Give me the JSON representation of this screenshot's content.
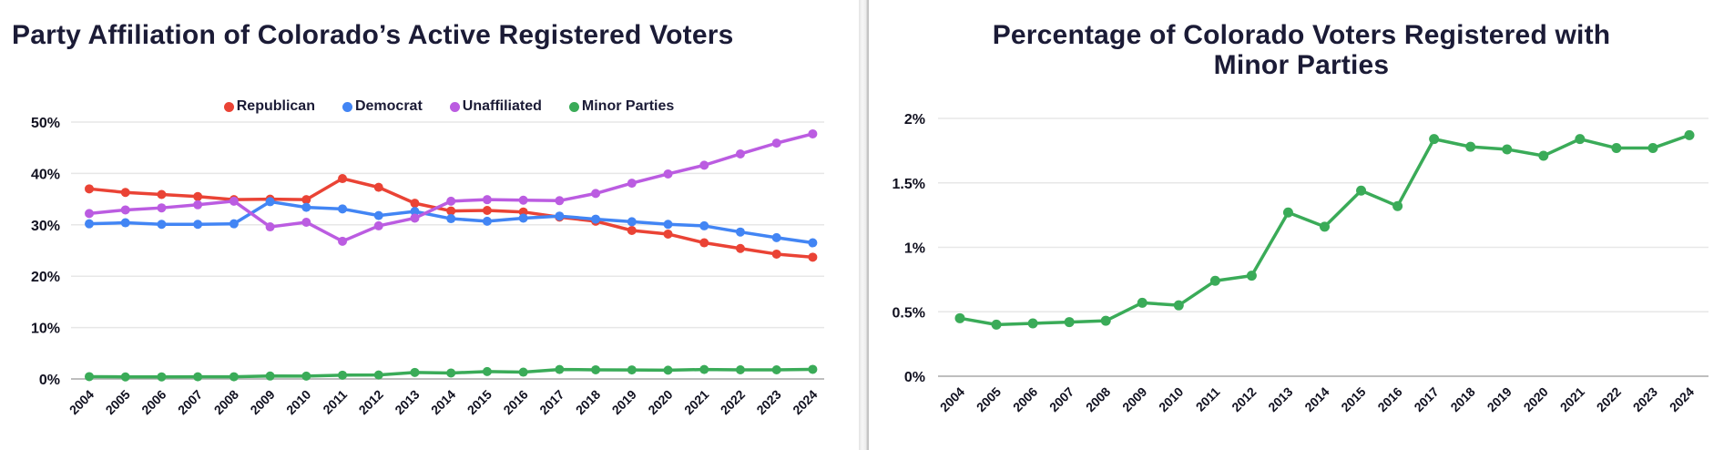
{
  "charts": [
    {
      "title": "Party Affiliation of Colorado’s Active Registered Voters"
    },
    {
      "title": "Percentage of Colorado Voters Registered with Minor Parties"
    }
  ],
  "chart_data": [
    {
      "type": "line",
      "title": "Party Affiliation of Colorado’s Active Registered Voters",
      "x": [
        2004,
        2005,
        2006,
        2007,
        2008,
        2009,
        2010,
        2011,
        2012,
        2013,
        2014,
        2015,
        2016,
        2017,
        2018,
        2019,
        2020,
        2021,
        2022,
        2023,
        2024
      ],
      "series": [
        {
          "name": "Republican",
          "color": "#EA4335",
          "values": [
            37.0,
            36.3,
            35.9,
            35.5,
            34.9,
            35.0,
            34.9,
            39.0,
            37.3,
            34.2,
            32.7,
            32.8,
            32.5,
            31.5,
            30.7,
            28.9,
            28.2,
            26.5,
            25.4,
            24.3,
            23.7
          ]
        },
        {
          "name": "Democrat",
          "color": "#4285F4",
          "values": [
            30.2,
            30.4,
            30.1,
            30.1,
            30.2,
            34.5,
            33.4,
            33.1,
            31.8,
            32.6,
            31.2,
            30.7,
            31.3,
            31.7,
            31.1,
            30.6,
            30.1,
            29.8,
            28.6,
            27.5,
            26.5
          ]
        },
        {
          "name": "Unaffiliated",
          "color": "#BB5CE1",
          "values": [
            32.2,
            32.9,
            33.3,
            33.9,
            34.6,
            29.6,
            30.5,
            26.8,
            29.8,
            31.3,
            34.6,
            34.9,
            34.8,
            34.7,
            36.1,
            38.1,
            39.9,
            41.6,
            43.8,
            45.9,
            47.7
          ]
        },
        {
          "name": "Minor Parties",
          "color": "#3AAB58",
          "values": [
            0.45,
            0.4,
            0.41,
            0.42,
            0.43,
            0.57,
            0.55,
            0.74,
            0.78,
            1.27,
            1.16,
            1.44,
            1.32,
            1.84,
            1.78,
            1.76,
            1.71,
            1.84,
            1.77,
            1.77,
            1.87
          ]
        }
      ],
      "ylim": [
        0,
        50
      ],
      "yticks": [
        "0%",
        "10%",
        "20%",
        "30%",
        "40%",
        "50%"
      ],
      "xlabel": "",
      "ylabel": "",
      "grid": true,
      "legend_position": "top"
    },
    {
      "type": "line",
      "title": "Percentage of Colorado Voters Registered with Minor Parties",
      "x": [
        2004,
        2005,
        2006,
        2007,
        2008,
        2009,
        2010,
        2011,
        2012,
        2013,
        2014,
        2015,
        2016,
        2017,
        2018,
        2019,
        2020,
        2021,
        2022,
        2023,
        2024
      ],
      "series": [
        {
          "name": "Minor Parties",
          "color": "#3AAB58",
          "values": [
            0.45,
            0.4,
            0.41,
            0.42,
            0.43,
            0.57,
            0.55,
            0.74,
            0.78,
            1.27,
            1.16,
            1.44,
            1.32,
            1.84,
            1.78,
            1.76,
            1.71,
            1.84,
            1.77,
            1.77,
            1.87
          ]
        }
      ],
      "ylim": [
        0,
        2
      ],
      "yticks": [
        "0%",
        "0.5%",
        "1%",
        "1.5%",
        "2%"
      ],
      "xlabel": "",
      "ylabel": "",
      "grid": true,
      "legend_position": "none"
    }
  ],
  "colors": {
    "republican": "#EA4335",
    "democrat": "#4285F4",
    "unaffiliated": "#BB5CE1",
    "minor_parties": "#3AAB58",
    "title_text": "#1b1b36",
    "gridline": "#e7e7e7",
    "axis_line": "#a9a9a9"
  }
}
